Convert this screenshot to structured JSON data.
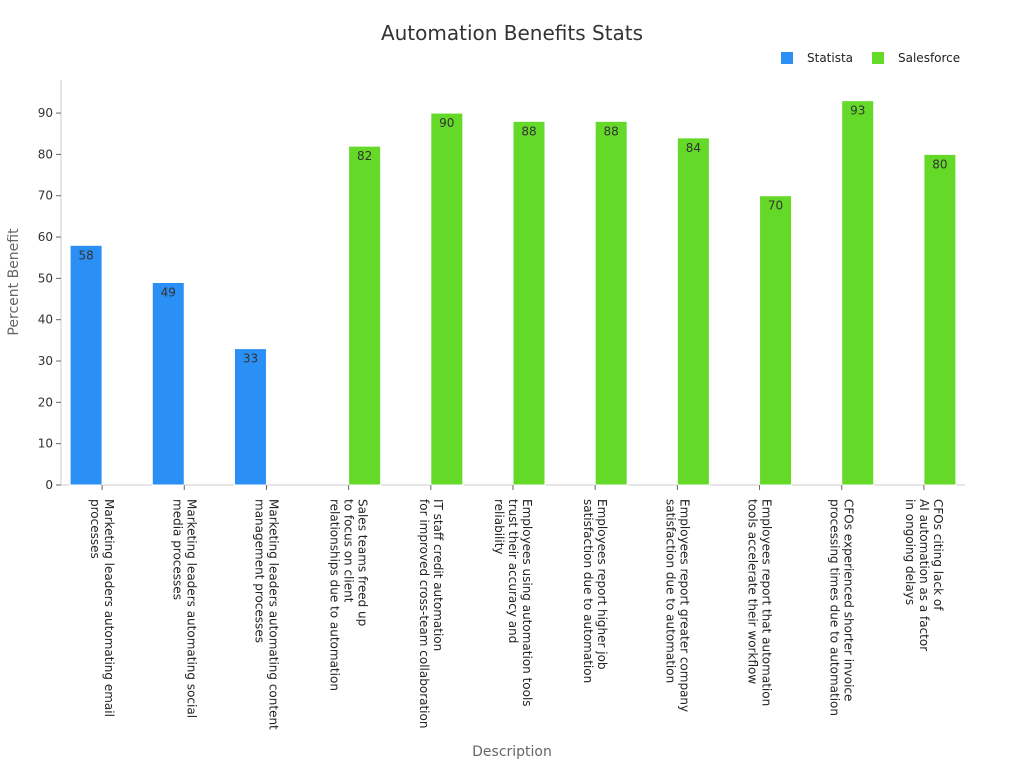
{
  "chart_data": {
    "type": "bar",
    "title": "Automation Benefits Stats",
    "xlabel": "Description",
    "ylabel": "Percent Benefit",
    "ylim": [
      0,
      98
    ],
    "yticks": [
      0,
      10,
      20,
      30,
      40,
      50,
      60,
      70,
      80,
      90
    ],
    "grid": false,
    "legend_position": "top-right",
    "categories": [
      "Marketing leaders automating email processes",
      "Marketing leaders automating social media processes",
      "Marketing leaders automating content management processes",
      "Sales teams freed up to focus on client relationships due to automation",
      "IT staff credit automation for improved cross-team collaboration",
      "Employees using automation tools trust their accuracy and reliability",
      "Employees report higher job satisfaction due to automation",
      "Employees report greater company satisfaction due to automation",
      "Employees report that automation tools accelerate their workflow",
      "CFOs experienced shorter invoice processing times due to automation",
      "CFOs citing lack of AI automation as a factor in ongoing delays"
    ],
    "category_lines": [
      [
        "Marketing leaders automating email",
        "processes"
      ],
      [
        "Marketing leaders automating social",
        "media processes"
      ],
      [
        "Marketing leaders automating content",
        "management processes"
      ],
      [
        "Sales teams freed up",
        "to focus on client",
        "relationships due to automation"
      ],
      [
        "IT staff credit automation",
        "for improved cross-team collaboration"
      ],
      [
        "Employees using automation tools",
        "trust their accuracy and",
        "reliability"
      ],
      [
        "Employees report higher job",
        "satisfaction due to automation"
      ],
      [
        "Employees report greater company",
        "satisfaction due to automation"
      ],
      [
        "Employees report that automation",
        "tools accelerate their workflow"
      ],
      [
        "CFOs experienced shorter invoice",
        "processing times due to automation"
      ],
      [
        "CFOs citing lack of",
        "AI automation as a factor",
        "in ongoing delays"
      ]
    ],
    "series": [
      {
        "name": "Statista",
        "color": "#2b90f5",
        "values": [
          58,
          49,
          33,
          null,
          null,
          null,
          null,
          null,
          null,
          null,
          null
        ]
      },
      {
        "name": "Salesforce",
        "color": "#64d928",
        "values": [
          null,
          null,
          null,
          82,
          90,
          88,
          88,
          84,
          70,
          93,
          80
        ]
      }
    ]
  }
}
